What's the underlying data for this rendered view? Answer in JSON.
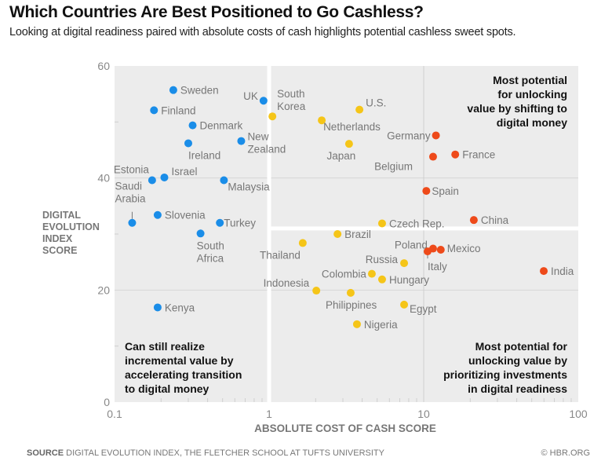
{
  "header": {
    "title": "Which Countries Are Best Positioned to Go Cashless?",
    "subtitle": "Looking at digital readiness paired with absolute costs of cash highlights potential cashless sweet spots."
  },
  "footer": {
    "source_label": "SOURCE",
    "source_text": "DIGITAL EVOLUTION INDEX, THE FLETCHER SCHOOL AT TUFTS UNIVERSITY",
    "credit": "© HBR.ORG"
  },
  "chart_data": {
    "type": "scatter",
    "title": "Which Countries Are Best Positioned to Go Cashless?",
    "xlabel": "ABSOLUTE COST OF CASH SCORE",
    "ylabel_lines": [
      "DIGITAL",
      "EVOLUTION",
      "INDEX",
      "SCORE"
    ],
    "xscale": "log",
    "xlim": [
      0.1,
      100
    ],
    "ylim": [
      0,
      60
    ],
    "xticks": [
      0.1,
      1,
      10,
      100
    ],
    "xtick_labels": [
      "0.1",
      "1",
      "10",
      "100"
    ],
    "yticks": [
      0,
      20,
      40,
      60
    ],
    "ytick_labels": [
      "0",
      "20",
      "40",
      "60"
    ],
    "grid": true,
    "colors": {
      "blue": "#1a8de8",
      "yellow": "#f5c518",
      "red": "#ee4a1a",
      "plot_bg": "#ececec",
      "divider": "#ffffff"
    },
    "dividers": {
      "x_white_line": 1,
      "y_white_line": 31,
      "y_white_line_from_x": 1
    },
    "quadrant_labels": [
      {
        "position": "top-right",
        "lines": [
          "Most potential",
          "for unlocking",
          "value by shifting to",
          "digital money"
        ]
      },
      {
        "position": "bottom-left",
        "lines": [
          "Can still realize",
          "incremental value by",
          "accelerating transition",
          "to digital money"
        ]
      },
      {
        "position": "bottom-right",
        "lines": [
          "Most potential for",
          "unlocking value by",
          "prioritizing investments",
          "in digital readiness"
        ]
      }
    ],
    "series": [
      {
        "name": "blue",
        "color": "#1a8de8",
        "points": [
          {
            "label": "Sweden",
            "x": 0.24,
            "y": 55.7
          },
          {
            "label": "Finland",
            "x": 0.18,
            "y": 52.1
          },
          {
            "label": "UK",
            "x": 0.92,
            "y": 53.8
          },
          {
            "label": "Denmark",
            "x": 0.32,
            "y": 49.4
          },
          {
            "label": "Ireland",
            "x": 0.3,
            "y": 46.2
          },
          {
            "label": "New Zealand",
            "x": 0.66,
            "y": 46.6
          },
          {
            "label": "Estonia",
            "x": 0.175,
            "y": 39.6
          },
          {
            "label": "Israel",
            "x": 0.21,
            "y": 40.1
          },
          {
            "label": "Malaysia",
            "x": 0.51,
            "y": 39.6
          },
          {
            "label": "Saudi Arabia",
            "x": 0.13,
            "y": 32.0
          },
          {
            "label": "Slovenia",
            "x": 0.19,
            "y": 33.4
          },
          {
            "label": "Turkey",
            "x": 0.48,
            "y": 32.0
          },
          {
            "label": "South Africa",
            "x": 0.36,
            "y": 30.1
          },
          {
            "label": "Kenya",
            "x": 0.19,
            "y": 16.9
          }
        ]
      },
      {
        "name": "yellow",
        "color": "#f5c518",
        "points": [
          {
            "label": "South Korea",
            "x": 1.05,
            "y": 51.0
          },
          {
            "label": "U.S.",
            "x": 3.84,
            "y": 52.2
          },
          {
            "label": "Netherlands",
            "x": 2.19,
            "y": 50.3
          },
          {
            "label": "Japan",
            "x": 3.29,
            "y": 46.1
          },
          {
            "label": "Czech Rep.",
            "x": 5.38,
            "y": 31.9
          },
          {
            "label": "Brazil",
            "x": 2.77,
            "y": 30.0
          },
          {
            "label": "Thailand",
            "x": 1.65,
            "y": 28.4
          },
          {
            "label": "Russia",
            "x": 7.47,
            "y": 24.8
          },
          {
            "label": "Colombia",
            "x": 4.62,
            "y": 22.9
          },
          {
            "label": "Hungary",
            "x": 5.38,
            "y": 21.9
          },
          {
            "label": "Indonesia",
            "x": 2.02,
            "y": 19.9
          },
          {
            "label": "Philippines",
            "x": 3.37,
            "y": 19.5
          },
          {
            "label": "Egypt",
            "x": 7.47,
            "y": 17.4
          },
          {
            "label": "Nigeria",
            "x": 3.7,
            "y": 13.9
          }
        ]
      },
      {
        "name": "red",
        "color": "#ee4a1a",
        "points": [
          {
            "label": "Germany",
            "x": 12.0,
            "y": 47.6
          },
          {
            "label": "Belgium",
            "x": 11.5,
            "y": 43.8
          },
          {
            "label": "France",
            "x": 16.0,
            "y": 44.2
          },
          {
            "label": "Spain",
            "x": 10.4,
            "y": 37.7
          },
          {
            "label": "China",
            "x": 21.1,
            "y": 32.5
          },
          {
            "label": "Poland",
            "x": 11.5,
            "y": 27.4
          },
          {
            "label": "Italy",
            "x": 10.6,
            "y": 26.9
          },
          {
            "label": "Mexico",
            "x": 12.9,
            "y": 27.2
          },
          {
            "label": "India",
            "x": 59.8,
            "y": 23.4
          }
        ]
      }
    ]
  }
}
